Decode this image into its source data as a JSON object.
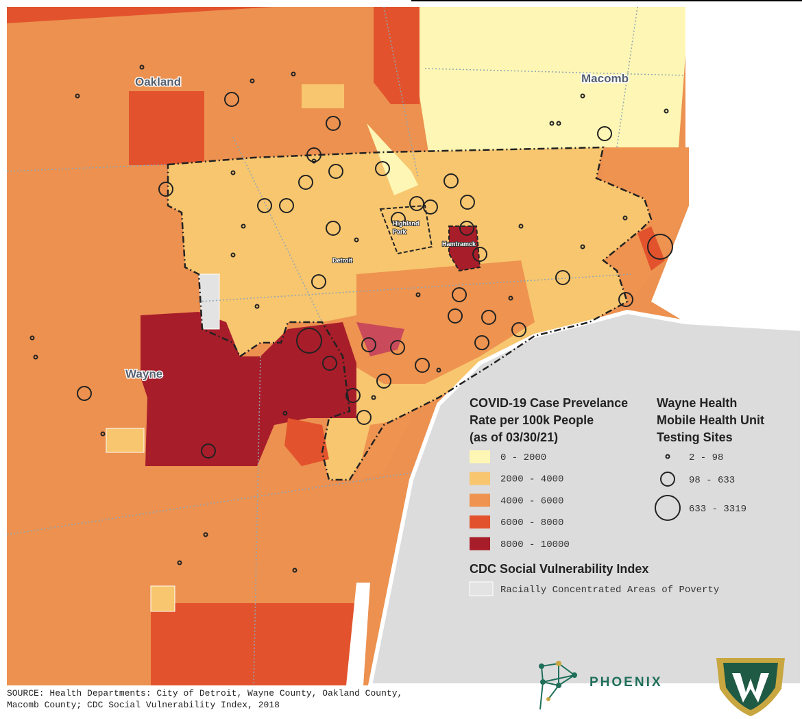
{
  "map_labels": {
    "oakland": "Oakland",
    "macomb": "Macomb",
    "wayne": "Wayne",
    "detroit": "Detroit",
    "highland_park": [
      "Highland",
      "Park"
    ],
    "hamtramck": "Hamtramck"
  },
  "case_legend": {
    "title": [
      "COVID-19 Case Prevelance",
      "Rate per 100k People",
      "(as of 03/30/21)"
    ],
    "items": [
      {
        "label": "0 - 2000",
        "color": "#fdf6b4"
      },
      {
        "label": "2000 - 4000",
        "color": "#f7c66f"
      },
      {
        "label": "4000 - 6000",
        "color": "#ee9350"
      },
      {
        "label": "6000 - 8000",
        "color": "#e2532d"
      },
      {
        "label": "8000 - 10000",
        "color": "#a81d2a"
      }
    ]
  },
  "site_legend": {
    "title": [
      "Wayne Health",
      "Mobile Health Unit",
      "Testing Sites"
    ],
    "items": [
      {
        "label": "2 - 98"
      },
      {
        "label": "98 - 633"
      },
      {
        "label": "633 - 3319"
      }
    ]
  },
  "svi_legend": {
    "title": "CDC Social Vulnerability Index",
    "items": [
      {
        "label": "Racially Concentrated Areas of Poverty",
        "color": "#e3e3e3"
      }
    ]
  },
  "source": [
    "SOURCE: Health Departments: City of Detroit, Wayne County, Oakland County,",
    "Macomb County; CDC Social Vulnerability Index, 2018"
  ],
  "logo": "PHOENIX"
}
